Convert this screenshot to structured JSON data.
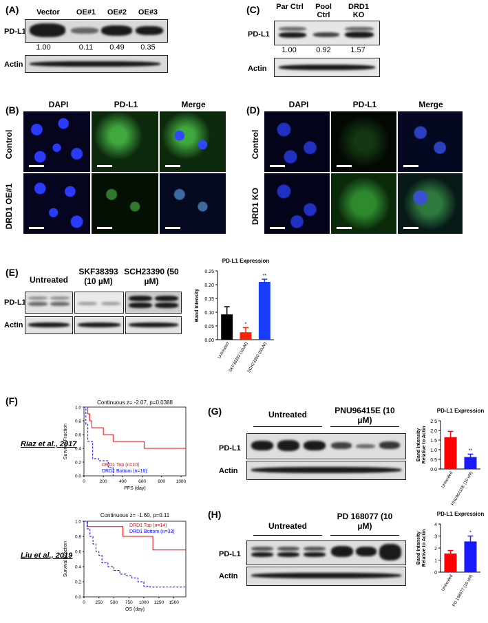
{
  "panelA": {
    "label": "(A)",
    "lanes": [
      "Vector",
      "OE#1",
      "OE#2",
      "OE#3"
    ],
    "row1": "PD-L1",
    "row2": "Actin",
    "values": [
      "1.00",
      "0.11",
      "0.49",
      "0.35"
    ]
  },
  "panelC": {
    "label": "(C)",
    "lanes": [
      "Par Ctrl",
      "Pool Ctrl",
      "DRD1 KO"
    ],
    "row1": "PD-L1",
    "row2": "Actin",
    "values": [
      "1.00",
      "0.92",
      "1.57"
    ]
  },
  "panelB": {
    "label": "(B)",
    "cols": [
      "DAPI",
      "PD-L1",
      "Merge"
    ],
    "rows": [
      "Control",
      "DRD1 OE#1"
    ]
  },
  "panelD": {
    "label": "(D)",
    "cols": [
      "DAPI",
      "PD-L1",
      "Merge"
    ],
    "rows": [
      "Control",
      "DRD1 KO"
    ]
  },
  "panelE": {
    "label": "(E)",
    "groups": [
      "Untreated",
      "SKF38393 (10 µM)",
      "SCH23390 (50 µM)"
    ],
    "row1": "PD-L1",
    "row2": "Actin"
  },
  "panelF": {
    "label": "(F)",
    "ref1": "Riaz et al., 2017",
    "ref2": "Liu et al., 2019"
  },
  "panelG": {
    "label": "(G)",
    "groups": [
      "Untreated",
      "PNU96415E (10 µM)"
    ],
    "row1": "PD-L1",
    "row2": "Actin"
  },
  "panelH": {
    "label": "(H)",
    "groups": [
      "Untreated",
      "PD 168077 (10 µM)"
    ],
    "row1": "PD-L1",
    "row2": "Actin"
  },
  "chart_data": [
    {
      "type": "bar",
      "title": "PD-L1 Expression",
      "ylabel": "Band Intensity",
      "categories": [
        "Untreated",
        "SKF38393 (10uM)",
        "SCH23390 (50uM)"
      ],
      "values": [
        0.092,
        0.027,
        0.21
      ],
      "errors": [
        0.028,
        0.017,
        0.01
      ],
      "ylim": [
        0,
        0.25
      ],
      "yticks": [
        "0.00",
        "0.05",
        "0.10",
        "0.15",
        "0.20",
        "0.25"
      ],
      "sig": [
        "",
        "*",
        "**"
      ],
      "colors": [
        "#000000",
        "#ff2200",
        "#1a3cff"
      ]
    },
    {
      "type": "bar",
      "title": "PD-L1 Expression",
      "ylabel": "Band Intensity Relative to Actin",
      "categories": [
        "Untreated",
        "PNU96415E (10 uM)"
      ],
      "values": [
        1.65,
        0.62
      ],
      "errors": [
        0.3,
        0.15
      ],
      "ylim": [
        0,
        2.5
      ],
      "yticks": [
        "0.0",
        "0.5",
        "1.0",
        "1.5",
        "2.0",
        "2.5"
      ],
      "sig": [
        "",
        "**"
      ],
      "colors": [
        "#ff0000",
        "#1a1aff"
      ]
    },
    {
      "type": "bar",
      "title": "PD-L1 Expression",
      "ylabel": "Band Intensity Relative to Actin",
      "categories": [
        "Untreated",
        "PD 168077 (10 uM)"
      ],
      "values": [
        1.55,
        2.55
      ],
      "errors": [
        0.25,
        0.45
      ],
      "ylim": [
        0,
        4
      ],
      "yticks": [
        "0",
        "1",
        "2",
        "3",
        "4"
      ],
      "sig": [
        "",
        "*"
      ],
      "colors": [
        "#ff0000",
        "#1a1aff"
      ]
    },
    {
      "type": "line",
      "title": "Continuous z= -2.07, p=0.0388",
      "xlabel": "PFS (day)",
      "ylabel": "Survival Fraction",
      "xlim": [
        0,
        1050
      ],
      "ylim": [
        0,
        1
      ],
      "xticks": [
        "0",
        "200",
        "400",
        "600",
        "800",
        "1000"
      ],
      "yticks": [
        "0.0",
        "0.2",
        "0.4",
        "0.6",
        "0.8",
        "1.0"
      ],
      "series": [
        {
          "name": "DRD1 Top (n=10)",
          "color": "#ff0000",
          "x": [
            0,
            40,
            60,
            80,
            150,
            200,
            300,
            620,
            1050
          ],
          "y": [
            1.0,
            0.9,
            0.8,
            0.7,
            0.7,
            0.6,
            0.5,
            0.4,
            0.4
          ]
        },
        {
          "name": "DRD1 Bottom (n=16)",
          "color": "#0000ff",
          "x": [
            0,
            20,
            40,
            60,
            90,
            150,
            250,
            300
          ],
          "y": [
            1.0,
            0.75,
            0.5,
            0.5,
            0.25,
            0.22,
            0.12,
            0.0
          ]
        }
      ]
    },
    {
      "type": "line",
      "title": "Continuous z= -1.60, p=0.11",
      "xlabel": "OS (day)",
      "ylabel": "Survival Fraction",
      "xlim": [
        0,
        1700
      ],
      "ylim": [
        0,
        1
      ],
      "xticks": [
        "0",
        "250",
        "500",
        "750",
        "1000",
        "1250",
        "1500"
      ],
      "yticks": [
        "0.0",
        "0.2",
        "0.4",
        "0.6",
        "0.8",
        "1.0"
      ],
      "series": [
        {
          "name": "DRD1 Top (n=14)",
          "color": "#ff0000",
          "x": [
            0,
            60,
            130,
            650,
            750,
            1150,
            1700
          ],
          "y": [
            1.0,
            0.93,
            0.93,
            0.8,
            0.8,
            0.62,
            0.62
          ]
        },
        {
          "name": "DRD1 Bottom (n=33)",
          "color": "#0000ff",
          "x": [
            0,
            50,
            100,
            150,
            200,
            250,
            300,
            400,
            500,
            600,
            700,
            800,
            900,
            1000,
            1100,
            1700
          ],
          "y": [
            1.0,
            0.9,
            0.8,
            0.7,
            0.6,
            0.55,
            0.45,
            0.4,
            0.35,
            0.3,
            0.28,
            0.25,
            0.2,
            0.14,
            0.13,
            0.13
          ]
        }
      ]
    }
  ]
}
